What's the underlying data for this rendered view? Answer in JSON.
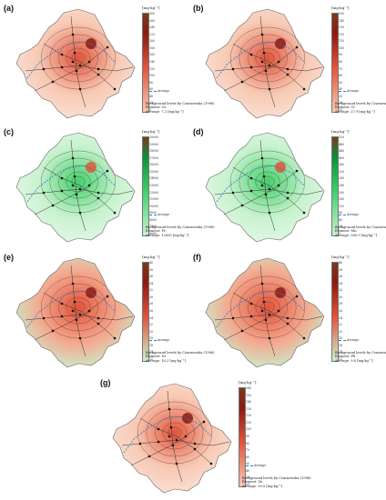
{
  "legend_unit": "[mg·kg⁻¹]",
  "average_label": "Average",
  "caption_source": "Background levels by Czarnowska (1996)",
  "panels": [
    {
      "letter": "(a)",
      "element": "Element: Cu",
      "average": "Average: 7.2 [mg·kg⁻¹]",
      "scheme": "red",
      "ticks": [
        "300",
        "260",
        "240",
        "220",
        "200",
        "180",
        "160",
        "140",
        "120",
        "100",
        "80",
        "60",
        "40",
        "20",
        "0"
      ],
      "avg_tick": "Average",
      "avg_value": "7.2"
    },
    {
      "letter": "(b)",
      "element": "Element: Cr",
      "average": "Average: 27.9 [mg·kg⁻¹]",
      "scheme": "red",
      "ticks": [
        "150",
        "140",
        "130",
        "120",
        "110",
        "100",
        "90",
        "80",
        "70",
        "60",
        "50",
        "40",
        "30",
        "20",
        "10"
      ],
      "avg_tick": "Average",
      "avg_value": "27.9"
    },
    {
      "letter": "(c)",
      "element": "Element: Fe",
      "average": "Average: 12000 [mg·kg⁻¹]",
      "scheme": "green",
      "ticks": [
        "20000",
        "19000",
        "18000",
        "17000",
        "16000",
        "15000",
        "14000",
        "13000",
        "12000",
        "11000",
        "10000",
        "9000",
        "8000",
        "7000",
        "6000"
      ],
      "avg_tick": "Average",
      "avg_value": "12000"
    },
    {
      "letter": "(d)",
      "element": "Element: Mn",
      "average": "Average: 280.9 [mg·kg⁻¹]",
      "scheme": "green",
      "ticks": [
        "520",
        "480",
        "440",
        "400",
        "360",
        "320",
        "280",
        "240",
        "200",
        "160",
        "120",
        "80",
        "40",
        "20",
        "0"
      ],
      "avg_tick": "Average",
      "avg_value": "280.9"
    },
    {
      "letter": "(e)",
      "element": "Element: Ni",
      "average": "Average: 16.2 [mg·kg⁻¹]",
      "scheme": "red-green",
      "ticks": [
        "40",
        "38",
        "36",
        "34",
        "32",
        "30",
        "28",
        "26",
        "24",
        "22",
        "20",
        "18",
        "16",
        "14",
        "12"
      ],
      "avg_tick": "16.2",
      "avg_value": "16.2"
    },
    {
      "letter": "(f)",
      "element": "Element: Pb",
      "average": "Average: 9.8 [mg·kg⁻¹]",
      "scheme": "red-green",
      "ticks": [
        "40",
        "38",
        "36",
        "34",
        "32",
        "30",
        "28",
        "26",
        "24",
        "22",
        "20",
        "18",
        "16",
        "14",
        "12"
      ],
      "avg_tick": "9.8",
      "avg_value": "9.8"
    },
    {
      "letter": "(g)",
      "element": "Element: Zn",
      "average": "Average: 30.0 [mg·kg⁻¹]",
      "scheme": "red",
      "ticks": [
        "160",
        "150",
        "140",
        "130",
        "120",
        "110",
        "100",
        "90",
        "80",
        "70",
        "60",
        "50",
        "40",
        "30",
        "20"
      ],
      "avg_tick": "30",
      "avg_value": "30.0"
    }
  ],
  "colors": {
    "red_high": "#8b1a12",
    "red_mid": "#e2533a",
    "red_low": "#f7c9b4",
    "green_high": "#0b8f3a",
    "green_mid": "#40d06a",
    "green_low": "#c8f2cf",
    "brown_high": "#7a3a1c",
    "avg_line": "#2a7bd0"
  }
}
